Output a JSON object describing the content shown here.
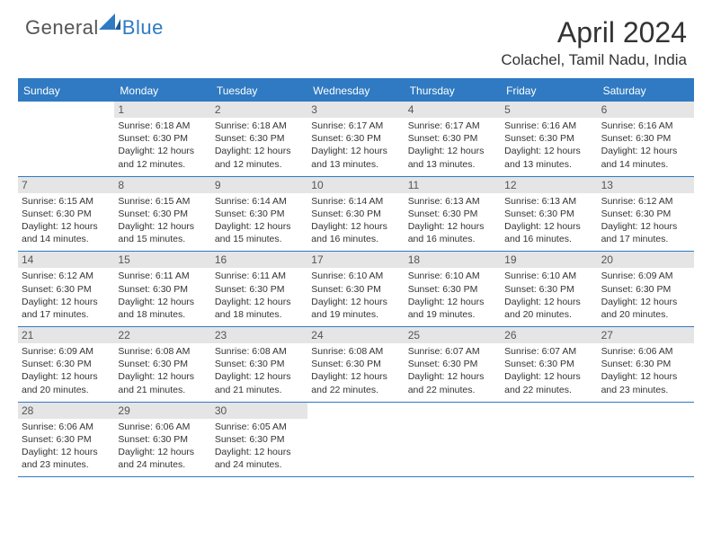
{
  "logo": {
    "general": "General",
    "blue": "Blue"
  },
  "title": "April 2024",
  "location": "Colachel, Tamil Nadu, India",
  "colors": {
    "accent": "#2f7ac2",
    "dow_bg": "#2f7ac2",
    "dow_text": "#ffffff",
    "daynum_bg": "#e5e5e5",
    "text": "#333333",
    "background": "#ffffff"
  },
  "day_names": [
    "Sunday",
    "Monday",
    "Tuesday",
    "Wednesday",
    "Thursday",
    "Friday",
    "Saturday"
  ],
  "weeks": [
    [
      {
        "n": "",
        "sr": "",
        "ss": "",
        "dl": ""
      },
      {
        "n": "1",
        "sr": "6:18 AM",
        "ss": "6:30 PM",
        "dl": "12 hours and 12 minutes."
      },
      {
        "n": "2",
        "sr": "6:18 AM",
        "ss": "6:30 PM",
        "dl": "12 hours and 12 minutes."
      },
      {
        "n": "3",
        "sr": "6:17 AM",
        "ss": "6:30 PM",
        "dl": "12 hours and 13 minutes."
      },
      {
        "n": "4",
        "sr": "6:17 AM",
        "ss": "6:30 PM",
        "dl": "12 hours and 13 minutes."
      },
      {
        "n": "5",
        "sr": "6:16 AM",
        "ss": "6:30 PM",
        "dl": "12 hours and 13 minutes."
      },
      {
        "n": "6",
        "sr": "6:16 AM",
        "ss": "6:30 PM",
        "dl": "12 hours and 14 minutes."
      }
    ],
    [
      {
        "n": "7",
        "sr": "6:15 AM",
        "ss": "6:30 PM",
        "dl": "12 hours and 14 minutes."
      },
      {
        "n": "8",
        "sr": "6:15 AM",
        "ss": "6:30 PM",
        "dl": "12 hours and 15 minutes."
      },
      {
        "n": "9",
        "sr": "6:14 AM",
        "ss": "6:30 PM",
        "dl": "12 hours and 15 minutes."
      },
      {
        "n": "10",
        "sr": "6:14 AM",
        "ss": "6:30 PM",
        "dl": "12 hours and 16 minutes."
      },
      {
        "n": "11",
        "sr": "6:13 AM",
        "ss": "6:30 PM",
        "dl": "12 hours and 16 minutes."
      },
      {
        "n": "12",
        "sr": "6:13 AM",
        "ss": "6:30 PM",
        "dl": "12 hours and 16 minutes."
      },
      {
        "n": "13",
        "sr": "6:12 AM",
        "ss": "6:30 PM",
        "dl": "12 hours and 17 minutes."
      }
    ],
    [
      {
        "n": "14",
        "sr": "6:12 AM",
        "ss": "6:30 PM",
        "dl": "12 hours and 17 minutes."
      },
      {
        "n": "15",
        "sr": "6:11 AM",
        "ss": "6:30 PM",
        "dl": "12 hours and 18 minutes."
      },
      {
        "n": "16",
        "sr": "6:11 AM",
        "ss": "6:30 PM",
        "dl": "12 hours and 18 minutes."
      },
      {
        "n": "17",
        "sr": "6:10 AM",
        "ss": "6:30 PM",
        "dl": "12 hours and 19 minutes."
      },
      {
        "n": "18",
        "sr": "6:10 AM",
        "ss": "6:30 PM",
        "dl": "12 hours and 19 minutes."
      },
      {
        "n": "19",
        "sr": "6:10 AM",
        "ss": "6:30 PM",
        "dl": "12 hours and 20 minutes."
      },
      {
        "n": "20",
        "sr": "6:09 AM",
        "ss": "6:30 PM",
        "dl": "12 hours and 20 minutes."
      }
    ],
    [
      {
        "n": "21",
        "sr": "6:09 AM",
        "ss": "6:30 PM",
        "dl": "12 hours and 20 minutes."
      },
      {
        "n": "22",
        "sr": "6:08 AM",
        "ss": "6:30 PM",
        "dl": "12 hours and 21 minutes."
      },
      {
        "n": "23",
        "sr": "6:08 AM",
        "ss": "6:30 PM",
        "dl": "12 hours and 21 minutes."
      },
      {
        "n": "24",
        "sr": "6:08 AM",
        "ss": "6:30 PM",
        "dl": "12 hours and 22 minutes."
      },
      {
        "n": "25",
        "sr": "6:07 AM",
        "ss": "6:30 PM",
        "dl": "12 hours and 22 minutes."
      },
      {
        "n": "26",
        "sr": "6:07 AM",
        "ss": "6:30 PM",
        "dl": "12 hours and 22 minutes."
      },
      {
        "n": "27",
        "sr": "6:06 AM",
        "ss": "6:30 PM",
        "dl": "12 hours and 23 minutes."
      }
    ],
    [
      {
        "n": "28",
        "sr": "6:06 AM",
        "ss": "6:30 PM",
        "dl": "12 hours and 23 minutes."
      },
      {
        "n": "29",
        "sr": "6:06 AM",
        "ss": "6:30 PM",
        "dl": "12 hours and 24 minutes."
      },
      {
        "n": "30",
        "sr": "6:05 AM",
        "ss": "6:30 PM",
        "dl": "12 hours and 24 minutes."
      },
      {
        "n": "",
        "sr": "",
        "ss": "",
        "dl": ""
      },
      {
        "n": "",
        "sr": "",
        "ss": "",
        "dl": ""
      },
      {
        "n": "",
        "sr": "",
        "ss": "",
        "dl": ""
      },
      {
        "n": "",
        "sr": "",
        "ss": "",
        "dl": ""
      }
    ]
  ],
  "labels": {
    "sunrise": "Sunrise: ",
    "sunset": "Sunset: ",
    "daylight": "Daylight: "
  }
}
